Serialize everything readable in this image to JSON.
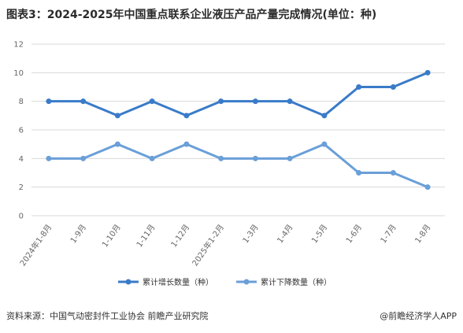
{
  "title": "图表3：2024-2025年中国重点联系企业液压产品产量完成情况(单位：种)",
  "source": "资料来源：中国气动密封件工业协会 前瞻产业研究院",
  "brand": "@前瞻经济学人APP",
  "watermark": "前瞻产业研究院",
  "chart_data": {
    "type": "line",
    "categories": [
      "2024年1-8月",
      "1-9月",
      "1-10月",
      "1-11月",
      "1-12月",
      "2025年1-2月",
      "1-3月",
      "1-4月",
      "1-5月",
      "1-6月",
      "1-7月",
      "1-8月"
    ],
    "series": [
      {
        "name": "累计增长数量（种）",
        "values": [
          8,
          8,
          7,
          8,
          7,
          8,
          8,
          8,
          7,
          9,
          9,
          10
        ],
        "color": "#3a7bc8"
      },
      {
        "name": "累计下降数量（种）",
        "values": [
          4,
          4,
          5,
          4,
          5,
          4,
          4,
          4,
          5,
          3,
          3,
          2
        ],
        "color": "#6a9fd8"
      }
    ],
    "yticks": [
      0,
      2,
      4,
      6,
      8,
      10,
      12
    ],
    "ylim": [
      0,
      12
    ],
    "grid": true,
    "legend": "bottom"
  }
}
